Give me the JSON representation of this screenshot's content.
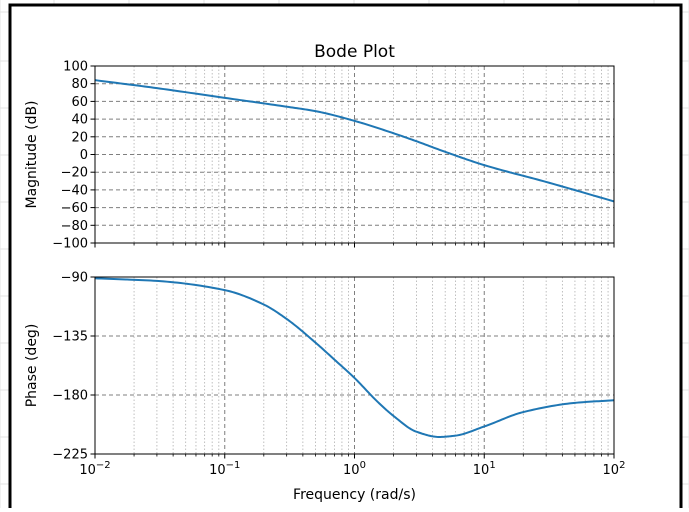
{
  "chart_data": {
    "type": "line",
    "title": "Bode Plot",
    "xlabel": "Frequency (rad/s)",
    "x_scale": "log",
    "xlim": [
      0.01,
      100
    ],
    "x_tick_labels": [
      {
        "base": "10",
        "exp": "−2"
      },
      {
        "base": "10",
        "exp": "−1"
      },
      {
        "base": "10",
        "exp": "0"
      },
      {
        "base": "10",
        "exp": "1"
      },
      {
        "base": "10",
        "exp": "2"
      }
    ],
    "grid": true,
    "line_color": "#1f77b4",
    "subplots": [
      {
        "ylabel": "Magnitude (dB)",
        "ylim": [
          -100,
          100
        ],
        "yticks": [
          100,
          80,
          60,
          40,
          20,
          0,
          -20,
          -40,
          -60,
          -80,
          -100
        ],
        "ytick_labels": [
          "100",
          "80",
          "60",
          "40",
          "20",
          "0",
          "−20",
          "−40",
          "−60",
          "−80",
          "−100"
        ],
        "series": [
          {
            "x": [
              0.01,
              0.03,
              0.1,
              0.3,
              0.5,
              1,
              2,
              3,
              5,
              10,
              30,
              100
            ],
            "y": [
              84,
              75,
              64,
              54,
              49,
              38,
              24,
              15,
              3,
              -12,
              -31,
              -53
            ]
          }
        ]
      },
      {
        "ylabel": "Phase (deg)",
        "ylim": [
          -225,
          -90
        ],
        "yticks": [
          -90,
          -135,
          -180,
          -225
        ],
        "ytick_labels": [
          "−90",
          "−135",
          "−180",
          "−225"
        ],
        "series": [
          {
            "x": [
              0.01,
              0.03,
              0.1,
              0.2,
              0.3,
              0.5,
              0.7,
              1,
              1.5,
              2,
              3,
              4.5,
              6,
              10,
              20,
              50,
              100
            ],
            "y": [
              -91,
              -93,
              -100,
              -111,
              -122,
              -140,
              -153,
              -167,
              -185,
              -196,
              -208,
              -212,
              -211,
              -204,
              -193,
              -186,
              -184
            ]
          }
        ]
      }
    ]
  }
}
